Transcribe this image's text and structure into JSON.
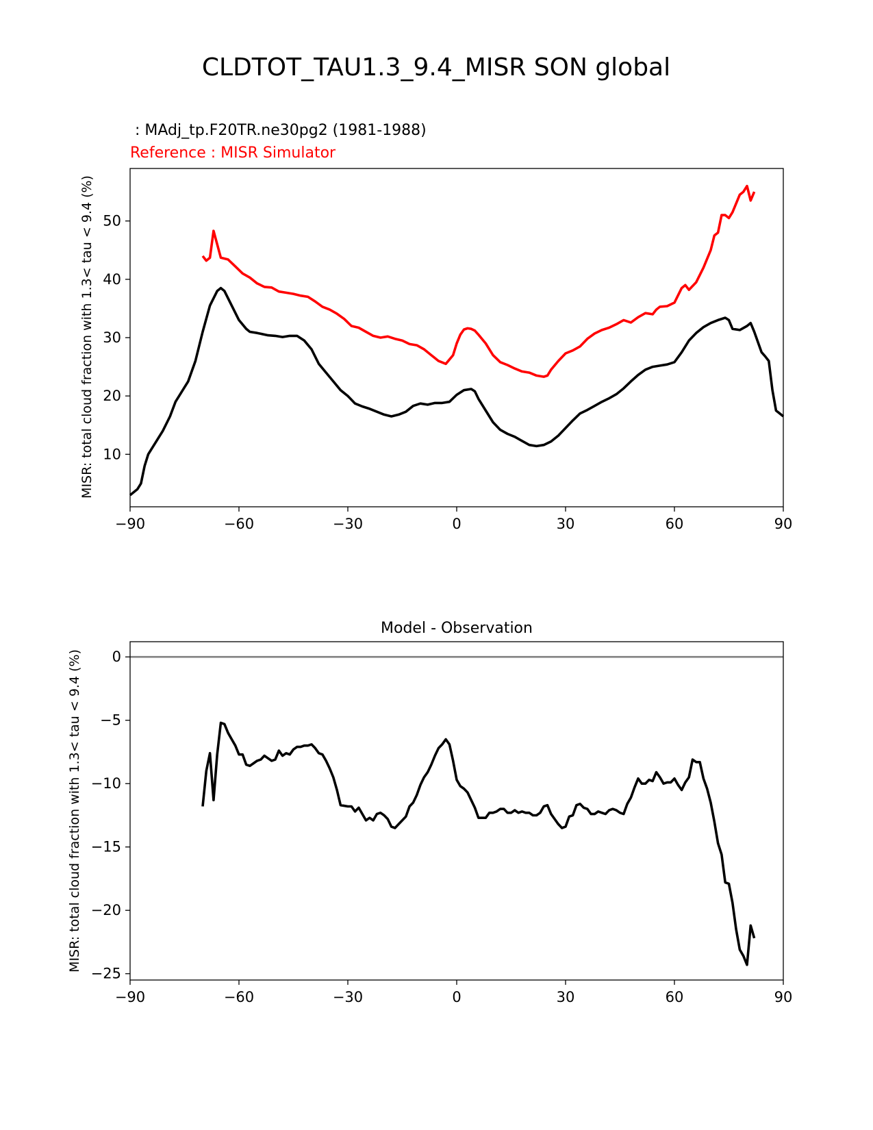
{
  "figure": {
    "title": "CLDTOT_TAU1.3_9.4_MISR SON global"
  },
  "chart_data": [
    {
      "type": "line",
      "test_label": " : MAdj_tp.F20TR.ne30pg2 (1981-1988)",
      "ref_label": "Reference : MISR Simulator",
      "xlabel": "",
      "ylabel": "MISR: total cloud fraction with 1.3< tau < 9.4 (%)",
      "xlim": [
        -90,
        90
      ],
      "ylim": [
        1,
        59
      ],
      "xticks": [
        -90,
        -60,
        -30,
        0,
        30,
        60,
        90
      ],
      "xtick_labels": [
        "−90",
        "−60",
        "−30",
        "0",
        "30",
        "60",
        "90"
      ],
      "yticks": [
        10,
        20,
        30,
        40,
        50
      ],
      "ytick_labels": [
        "10",
        "20",
        "30",
        "40",
        "50"
      ],
      "series": [
        {
          "name": "MAdj_tp.F20TR.ne30pg2 (1981-1988)",
          "color": "#000000",
          "x": [
            -90,
            -88,
            -87,
            -86,
            -85,
            -84,
            -83,
            -81,
            -79,
            -77.5,
            -76.5,
            -75,
            -74,
            -72,
            -70,
            -68,
            -66,
            -65,
            -64,
            -62,
            -60,
            -58,
            -57,
            -55,
            -52,
            -50,
            -48,
            -46,
            -44,
            -42,
            -40,
            -38,
            -36,
            -34,
            -32,
            -30,
            -28,
            -26,
            -24,
            -22,
            -20,
            -18,
            -16,
            -14,
            -12,
            -10,
            -8,
            -6,
            -4,
            -2,
            0,
            2,
            4,
            5,
            6,
            8,
            10,
            12,
            14,
            16,
            18,
            20,
            22,
            24,
            26,
            28,
            30,
            32,
            34,
            36,
            38,
            40,
            42,
            44,
            46,
            48,
            50,
            52,
            54,
            56,
            58,
            60,
            62,
            64,
            66,
            68,
            70,
            72,
            74,
            75,
            76,
            78,
            80,
            81,
            82,
            84,
            85,
            86,
            87,
            88,
            89,
            90
          ],
          "values": [
            3,
            4,
            5,
            8,
            10,
            11,
            12,
            14,
            16.5,
            19,
            20,
            21.5,
            22.5,
            26,
            31,
            35.5,
            38,
            38.5,
            38,
            35.5,
            33,
            31.5,
            31,
            30.8,
            30.4,
            30.3,
            30.1,
            30.3,
            30.3,
            29.5,
            28,
            25.5,
            24,
            22.5,
            21,
            20,
            18.7,
            18.2,
            17.8,
            17.3,
            16.8,
            16.5,
            16.8,
            17.3,
            18.3,
            18.7,
            18.5,
            18.8,
            18.8,
            19,
            20.2,
            21,
            21.2,
            20.8,
            19.5,
            17.5,
            15.5,
            14.2,
            13.5,
            13,
            12.3,
            11.6,
            11.4,
            11.6,
            12.2,
            13.2,
            14.5,
            15.8,
            17,
            17.6,
            18.3,
            19,
            19.6,
            20.3,
            21.3,
            22.5,
            23.6,
            24.5,
            25,
            25.2,
            25.4,
            25.8,
            27.5,
            29.5,
            30.8,
            31.8,
            32.5,
            33,
            33.4,
            33,
            31.5,
            31.3,
            32,
            32.5,
            31,
            27.5,
            26.8,
            26,
            21,
            17.5,
            17,
            16.5
          ]
        },
        {
          "name": "MISR Simulator",
          "color": "#ff0000",
          "x": [
            -70,
            -69,
            -68,
            -67,
            -66,
            -65,
            -63,
            -61,
            -59,
            -57,
            -55,
            -53,
            -51,
            -49,
            -47,
            -45,
            -43,
            -41,
            -39,
            -37,
            -35,
            -33,
            -31,
            -29,
            -27,
            -25,
            -23,
            -21,
            -19,
            -17,
            -15,
            -13,
            -11,
            -9,
            -7,
            -5,
            -3,
            -1,
            0,
            1,
            2,
            3,
            4,
            5,
            6,
            8,
            10,
            12,
            14,
            16,
            18,
            20,
            22,
            24,
            25,
            26,
            28,
            30,
            32,
            34,
            36,
            38,
            40,
            42,
            44,
            46,
            48,
            50,
            52,
            54,
            55,
            56,
            58,
            60,
            62,
            63,
            64,
            66,
            68,
            70,
            71,
            72,
            73,
            74,
            75,
            76,
            78,
            79,
            80,
            81,
            82
          ],
          "values": [
            44,
            43.2,
            43.7,
            48.3,
            46,
            43.7,
            43.4,
            42.2,
            41,
            40.3,
            39.3,
            38.7,
            38.6,
            37.9,
            37.7,
            37.5,
            37.2,
            37,
            36.2,
            35.3,
            34.8,
            34.1,
            33.2,
            32,
            31.7,
            31,
            30.3,
            30,
            30.2,
            29.8,
            29.5,
            28.9,
            28.7,
            28,
            27,
            26,
            25.5,
            27,
            29,
            30.5,
            31.4,
            31.6,
            31.5,
            31.2,
            30.5,
            29,
            27,
            25.8,
            25.3,
            24.7,
            24.2,
            24,
            23.5,
            23.3,
            23.5,
            24.5,
            26,
            27.3,
            27.8,
            28.5,
            29.8,
            30.7,
            31.3,
            31.7,
            32.3,
            33,
            32.6,
            33.5,
            34.2,
            34,
            34.8,
            35.3,
            35.4,
            36,
            38.5,
            39,
            38.2,
            39.5,
            42,
            45,
            47.5,
            48,
            51,
            51,
            50.5,
            51.5,
            54.5,
            55,
            56,
            53.5,
            55
          ]
        }
      ]
    },
    {
      "type": "line",
      "title": "Model - Observation",
      "xlabel": "",
      "ylabel": "MISR: total cloud fraction with 1.3< tau < 9.4 (%)",
      "xlim": [
        -90,
        90
      ],
      "ylim": [
        -25.5,
        1.2
      ],
      "xticks": [
        -90,
        -60,
        -30,
        0,
        30,
        60,
        90
      ],
      "xtick_labels": [
        "−90",
        "−60",
        "−30",
        "0",
        "30",
        "60",
        "90"
      ],
      "yticks": [
        0,
        -5,
        -10,
        -15,
        -20,
        -25
      ],
      "ytick_labels": [
        "0",
        "−5",
        "−10",
        "−15",
        "−20",
        "−25"
      ],
      "zero_line": 0,
      "series": [
        {
          "name": "Model - Observation",
          "color": "#000000",
          "x": [
            -70,
            -69,
            -68,
            -67,
            -66,
            -65,
            -64,
            -63,
            -62,
            -61,
            -60,
            -59,
            -58,
            -57,
            -56,
            -55,
            -54,
            -53,
            -52,
            -51,
            -50,
            -49,
            -48,
            -47,
            -46,
            -45,
            -44,
            -43,
            -42,
            -41,
            -40,
            -39,
            -38,
            -37,
            -36,
            -35,
            -34,
            -33,
            -32,
            -30,
            -29,
            -28,
            -27,
            -26,
            -25,
            -24,
            -23,
            -22,
            -21,
            -20,
            -19,
            -18,
            -17,
            -16,
            -15,
            -14,
            -13,
            -12,
            -11,
            -10,
            -9,
            -8,
            -7,
            -6,
            -5,
            -4,
            -3,
            -2,
            -1,
            0,
            1,
            2,
            3,
            4,
            5,
            6,
            8,
            9,
            10,
            11,
            12,
            13,
            14,
            15,
            16,
            17,
            18,
            19,
            20,
            21,
            22,
            23,
            24,
            25,
            26,
            27,
            28,
            29,
            30,
            31,
            32,
            33,
            34,
            35,
            36,
            37,
            38,
            39,
            40,
            41,
            42,
            43,
            44,
            45,
            46,
            47,
            48,
            49,
            50,
            51,
            52,
            53,
            54,
            55,
            56,
            57,
            58,
            59,
            60,
            61,
            62,
            63,
            64,
            65,
            66,
            67,
            68,
            69,
            70,
            71,
            72,
            73,
            74,
            75,
            76,
            77,
            78,
            79,
            80,
            81,
            82
          ],
          "values": [
            -11.8,
            -9,
            -7.6,
            -11.3,
            -7.7,
            -5.2,
            -5.3,
            -6,
            -6.5,
            -7,
            -7.7,
            -7.7,
            -8.5,
            -8.6,
            -8.4,
            -8.2,
            -8.1,
            -7.8,
            -8,
            -8.2,
            -8.1,
            -7.4,
            -7.8,
            -7.6,
            -7.7,
            -7.3,
            -7.1,
            -7.1,
            -7,
            -7,
            -6.9,
            -7.2,
            -7.6,
            -7.7,
            -8.2,
            -8.8,
            -9.5,
            -10.5,
            -11.7,
            -11.8,
            -11.8,
            -12.2,
            -11.9,
            -12.4,
            -12.9,
            -12.7,
            -12.9,
            -12.4,
            -12.3,
            -12.5,
            -12.8,
            -13.4,
            -13.5,
            -13.2,
            -12.9,
            -12.6,
            -11.8,
            -11.5,
            -10.9,
            -10.1,
            -9.5,
            -9.1,
            -8.5,
            -7.8,
            -7.2,
            -6.9,
            -6.5,
            -6.9,
            -8.2,
            -9.7,
            -10.2,
            -10.4,
            -10.7,
            -11.3,
            -11.9,
            -12.7,
            -12.7,
            -12.3,
            -12.3,
            -12.2,
            -12,
            -12,
            -12.3,
            -12.3,
            -12.1,
            -12.3,
            -12.2,
            -12.3,
            -12.3,
            -12.5,
            -12.5,
            -12.3,
            -11.8,
            -11.7,
            -12.4,
            -12.8,
            -13.2,
            -13.5,
            -13.4,
            -12.6,
            -12.5,
            -11.7,
            -11.6,
            -11.9,
            -12,
            -12.4,
            -12.4,
            -12.2,
            -12.3,
            -12.4,
            -12.1,
            -12,
            -12.1,
            -12.3,
            -12.4,
            -11.6,
            -11.1,
            -10.3,
            -9.6,
            -10,
            -10,
            -9.7,
            -9.8,
            -9.1,
            -9.5,
            -10,
            -9.9,
            -9.9,
            -9.6,
            -10.1,
            -10.5,
            -9.9,
            -9.5,
            -8.1,
            -8.3,
            -8.3,
            -9.6,
            -10.4,
            -11.5,
            -13,
            -14.7,
            -15.6,
            -17.8,
            -17.9,
            -19.4,
            -21.5,
            -23.1,
            -23.6,
            -24.3,
            -21.2,
            -22.2
          ]
        }
      ]
    }
  ]
}
